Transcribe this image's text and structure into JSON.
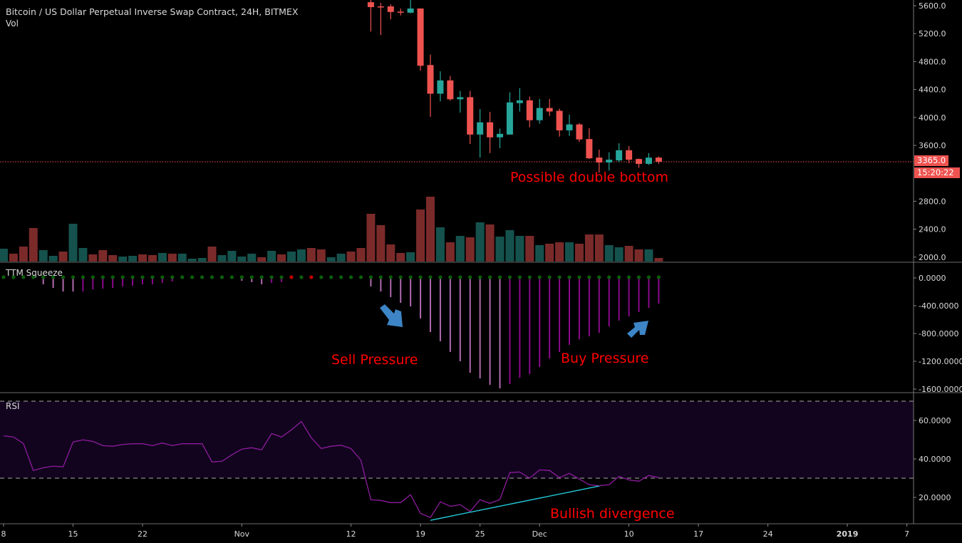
{
  "header": {
    "title": "Bitcoin / US Dollar Perpetual Inverse Swap Contract, 24H, BITMEX",
    "volume_label": "Vol"
  },
  "colors": {
    "candle_up": "#26a69a",
    "candle_down": "#ef5350",
    "volume_up": "#15524d",
    "volume_down": "#7b2a2a",
    "squeeze_light": "#b06aae",
    "squeeze_dark": "#8a0a8c",
    "squeeze_lime": "#22c022",
    "dot_green": "#0b5e0b",
    "dot_red": "#c40000",
    "rsi_line": "#8e1b9e",
    "rsi_band": "#12041e",
    "divergence_line": "#22c8d8",
    "annotation": "#ff0000",
    "arrow": "#3d85c6"
  },
  "chart_data": [
    {
      "type": "candlestick",
      "pane": "price",
      "ylim": [
        1950,
        5700
      ],
      "y_ticks": [
        5600,
        5200,
        4800,
        4400,
        4000,
        3600,
        2800,
        2400,
        2000
      ],
      "y_tick_labels": [
        "5600.0",
        "5200.0",
        "4800.0",
        "4400.0",
        "4000.0",
        "3600.0",
        "2800.0",
        "2400.0",
        "2000.0"
      ],
      "last_price": 3365,
      "last_price_label": "3365.0",
      "countdown": "15:20:22",
      "candles": [
        {
          "d": "2018-11-14",
          "o": 5650,
          "h": 5700,
          "l": 5230,
          "c": 5580
        },
        {
          "d": "2018-11-15",
          "o": 5590,
          "h": 5640,
          "l": 5180,
          "c": 5585
        },
        {
          "d": "2018-11-16",
          "o": 5590,
          "h": 5620,
          "l": 5405,
          "c": 5510
        },
        {
          "d": "2018-11-17",
          "o": 5515,
          "h": 5560,
          "l": 5460,
          "c": 5510
        },
        {
          "d": "2018-11-18",
          "o": 5500,
          "h": 5720,
          "l": 5490,
          "c": 5560
        },
        {
          "d": "2018-11-19",
          "o": 5560,
          "h": 5560,
          "l": 4670,
          "c": 4740
        },
        {
          "d": "2018-11-20",
          "o": 4750,
          "h": 4900,
          "l": 4010,
          "c": 4340
        },
        {
          "d": "2018-11-21",
          "o": 4340,
          "h": 4660,
          "l": 4230,
          "c": 4530
        },
        {
          "d": "2018-11-22",
          "o": 4530,
          "h": 4595,
          "l": 4240,
          "c": 4260
        },
        {
          "d": "2018-11-23",
          "o": 4260,
          "h": 4380,
          "l": 4070,
          "c": 4290
        },
        {
          "d": "2018-11-24",
          "o": 4290,
          "h": 4380,
          "l": 3620,
          "c": 3755
        },
        {
          "d": "2018-11-25",
          "o": 3755,
          "h": 4120,
          "l": 3425,
          "c": 3930
        },
        {
          "d": "2018-11-26",
          "o": 3930,
          "h": 4080,
          "l": 3490,
          "c": 3715
        },
        {
          "d": "2018-11-27",
          "o": 3715,
          "h": 3840,
          "l": 3560,
          "c": 3765
        },
        {
          "d": "2018-11-28",
          "o": 3755,
          "h": 4360,
          "l": 3755,
          "c": 4215
        },
        {
          "d": "2018-11-29",
          "o": 4205,
          "h": 4420,
          "l": 4085,
          "c": 4245
        },
        {
          "d": "2018-11-30",
          "o": 4245,
          "h": 4300,
          "l": 3860,
          "c": 3960
        },
        {
          "d": "2018-12-01",
          "o": 3960,
          "h": 4265,
          "l": 3910,
          "c": 4135
        },
        {
          "d": "2018-12-02",
          "o": 4135,
          "h": 4265,
          "l": 4020,
          "c": 4085
        },
        {
          "d": "2018-12-03",
          "o": 4095,
          "h": 4125,
          "l": 3725,
          "c": 3815
        },
        {
          "d": "2018-12-04",
          "o": 3815,
          "h": 4040,
          "l": 3735,
          "c": 3900
        },
        {
          "d": "2018-12-05",
          "o": 3900,
          "h": 3920,
          "l": 3650,
          "c": 3685
        },
        {
          "d": "2018-12-06",
          "o": 3690,
          "h": 3845,
          "l": 3405,
          "c": 3415
        },
        {
          "d": "2018-12-07",
          "o": 3425,
          "h": 3540,
          "l": 3210,
          "c": 3355
        },
        {
          "d": "2018-12-08",
          "o": 3355,
          "h": 3500,
          "l": 3240,
          "c": 3395
        },
        {
          "d": "2018-12-09",
          "o": 3385,
          "h": 3630,
          "l": 3355,
          "c": 3530
        },
        {
          "d": "2018-12-10",
          "o": 3530,
          "h": 3590,
          "l": 3345,
          "c": 3395
        },
        {
          "d": "2018-12-11",
          "o": 3405,
          "h": 3410,
          "l": 3280,
          "c": 3335
        },
        {
          "d": "2018-12-12",
          "o": 3335,
          "h": 3490,
          "l": 3320,
          "c": 3425
        },
        {
          "d": "2018-12-13",
          "o": 3425,
          "h": 3440,
          "l": 3335,
          "c": 3365
        }
      ]
    },
    {
      "type": "bar",
      "pane": "volume",
      "note_units": "relative",
      "values": [
        18,
        11,
        21,
        47,
        16,
        8,
        14,
        53,
        19,
        10,
        16,
        9,
        7,
        8,
        10,
        9,
        12,
        11,
        11,
        4,
        5,
        21,
        9,
        15,
        7,
        11,
        6,
        15,
        10,
        14,
        17,
        19,
        17,
        6,
        11,
        14,
        19,
        67,
        51,
        24,
        12,
        13,
        73,
        91,
        48,
        27,
        36,
        34,
        55,
        52,
        35,
        44,
        36,
        36,
        23,
        25,
        27,
        27,
        25,
        38,
        38,
        23,
        20,
        22,
        17,
        17,
        5
      ],
      "direction": [
        "g",
        "r",
        "r",
        "r",
        "g",
        "g",
        "r",
        "g",
        "g",
        "r",
        "r",
        "r",
        "g",
        "g",
        "r",
        "r",
        "g",
        "r",
        "g",
        "g",
        "g",
        "r",
        "g",
        "g",
        "g",
        "g",
        "r",
        "g",
        "r",
        "g",
        "g",
        "r",
        "r",
        "g",
        "g",
        "r",
        "r",
        "r",
        "r",
        "r",
        "r",
        "g",
        "r",
        "r",
        "g",
        "r",
        "g",
        "r",
        "g",
        "r",
        "g",
        "g",
        "g",
        "r",
        "g",
        "r",
        "r",
        "g",
        "r",
        "r",
        "r",
        "g",
        "g",
        "r",
        "r",
        "g",
        "r"
      ]
    },
    {
      "type": "bar",
      "pane": "squeeze",
      "title": "TTM Squeeze",
      "ylim": [
        -1650,
        20
      ],
      "y_ticks": [
        0,
        -400,
        -800,
        -1200,
        -1600
      ],
      "y_tick_labels": [
        "0.0000",
        "-400.0000",
        "-800.0000",
        "-1200.0000",
        "-1600.0000"
      ],
      "values": [
        0,
        0,
        0,
        0,
        -92,
        -144,
        -195,
        -195,
        -195,
        -164,
        -154,
        -144,
        -123,
        -113,
        -92,
        -92,
        -72,
        -51,
        -10,
        -5,
        10,
        10,
        10,
        0,
        -41,
        -61,
        -92,
        -72,
        -61,
        0,
        0,
        0,
        0,
        0,
        0,
        0,
        0,
        -123,
        -195,
        -277,
        -359,
        -410,
        -584,
        -779,
        -912,
        -1066,
        -1200,
        -1364,
        -1446,
        -1538,
        -1590,
        -1528,
        -1436,
        -1384,
        -1282,
        -1159,
        -1066,
        -964,
        -882,
        -841,
        -790,
        -697,
        -615,
        -554,
        -492,
        -431,
        -369
      ],
      "bar_color": [
        "dark",
        "dark",
        "dark",
        "dark",
        "light",
        "light",
        "light",
        "light",
        "dark",
        "dark",
        "dark",
        "dark",
        "dark",
        "dark",
        "dark",
        "dark",
        "dark",
        "dark",
        "dark",
        "dark",
        "lime",
        "lime",
        "lime",
        "dark",
        "light",
        "light",
        "light",
        "dark",
        "dark",
        "dark",
        "dark",
        "dark",
        "dark",
        "dark",
        "dark",
        "dark",
        "dark",
        "light",
        "light",
        "light",
        "light",
        "light",
        "light",
        "light",
        "light",
        "light",
        "light",
        "light",
        "light",
        "light",
        "light",
        "dark",
        "dark",
        "dark",
        "dark",
        "dark",
        "dark",
        "dark",
        "dark",
        "dark",
        "dark",
        "dark",
        "dark",
        "dark",
        "dark",
        "dark",
        "dark"
      ],
      "squeeze_dots": [
        "green",
        "green",
        "green",
        "green",
        "green",
        "green",
        "green",
        "green",
        "green",
        "green",
        "green",
        "green",
        "green",
        "green",
        "green",
        "green",
        "green",
        "green",
        "green",
        "green",
        "green",
        "green",
        "green",
        "green",
        "green",
        "green",
        "green",
        "green",
        "green",
        "red",
        "green",
        "red",
        "green",
        "green",
        "green",
        "green",
        "green",
        "green",
        "green",
        "green",
        "green",
        "green",
        "green",
        "green",
        "green",
        "green",
        "green",
        "green",
        "green",
        "green",
        "green",
        "green",
        "green",
        "green",
        "green",
        "green",
        "green",
        "green",
        "green",
        "green",
        "green",
        "green",
        "green",
        "green",
        "green",
        "green",
        "green"
      ]
    },
    {
      "type": "line",
      "pane": "rsi",
      "title": "RSI",
      "ylim": [
        4,
        76
      ],
      "y_ticks": [
        60,
        40,
        20
      ],
      "y_tick_labels": [
        "60.0000",
        "40.0000",
        "20.0000"
      ],
      "band": [
        30,
        70
      ],
      "values": [
        52.0,
        51.4,
        48.0,
        34.0,
        35.4,
        36.2,
        35.9,
        48.8,
        49.9,
        49.1,
        46.9,
        46.6,
        47.5,
        47.9,
        47.9,
        46.9,
        48.3,
        46.9,
        47.9,
        47.9,
        47.9,
        38.4,
        38.8,
        42.1,
        45.1,
        45.8,
        44.7,
        53.2,
        51.4,
        55.1,
        59.5,
        51.0,
        45.4,
        46.6,
        47.1,
        45.4,
        39.3,
        18.8,
        18.4,
        17.3,
        17.3,
        21.4,
        11.7,
        9.5,
        17.7,
        15.4,
        16.2,
        12.7,
        18.8,
        16.9,
        18.9,
        32.9,
        33.2,
        30.0,
        34.3,
        34.0,
        30.3,
        32.5,
        29.5,
        26.6,
        26.0,
        26.6,
        30.9,
        29.1,
        28.4,
        31.4,
        30.3
      ],
      "trendline": {
        "from": {
          "d": "2018-11-20",
          "v": 8.1
        },
        "to": {
          "d": "2018-12-07",
          "v": 25.9
        }
      }
    }
  ],
  "x_axis": {
    "first_date": "2018-10-08",
    "last_date": "2018-12-13",
    "ticks": [
      {
        "d": "2018-10-08",
        "label": "8"
      },
      {
        "d": "2018-10-15",
        "label": "15"
      },
      {
        "d": "2018-10-22",
        "label": "22"
      },
      {
        "d": "2018-11-01",
        "label": "Nov"
      },
      {
        "d": "2018-11-12",
        "label": "12"
      },
      {
        "d": "2018-11-19",
        "label": "19"
      },
      {
        "d": "2018-11-25",
        "label": "25"
      },
      {
        "d": "2018-12-01",
        "label": "Dec"
      },
      {
        "d": "2018-12-10",
        "label": "10"
      },
      {
        "d": "2018-12-17",
        "label": "17"
      },
      {
        "d": "2018-12-24",
        "label": "24"
      },
      {
        "d": "2019-01-01",
        "label": "2019",
        "bold": true
      },
      {
        "d": "2019-01-07",
        "label": "7"
      }
    ]
  },
  "annotations": {
    "double_bottom": "Possible double bottom",
    "sell_pressure": "Sell Pressure",
    "buy_pressure": "Buy Pressure",
    "bullish_divergence": "Bullish divergence",
    "arrows": [
      "arrow-down-right",
      "arrow-up-right"
    ]
  }
}
